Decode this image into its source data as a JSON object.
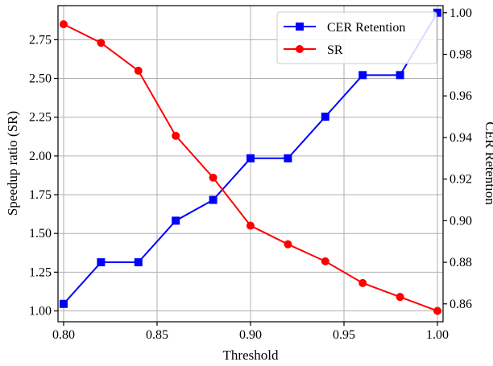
{
  "chart_data": {
    "type": "line",
    "xlabel": "Threshold",
    "ylabel_left": "Speedup ratio (SR)",
    "ylabel_right": "CER Retention",
    "xlim": [
      0.797,
      1.003
    ],
    "ylim_left": [
      0.93,
      2.97
    ],
    "ylim_right": [
      0.8514,
      1.0034
    ],
    "grid": true,
    "legend_position": "top-right",
    "x_ticks": [
      0.8,
      0.85,
      0.9,
      0.95,
      1.0
    ],
    "x_tick_labels": [
      "0.80",
      "0.85",
      "0.90",
      "0.95",
      "1.00"
    ],
    "y_left_ticks": [
      1.0,
      1.25,
      1.5,
      1.75,
      2.0,
      2.25,
      2.5,
      2.75
    ],
    "y_left_tick_labels": [
      "1.00",
      "1.25",
      "1.50",
      "1.75",
      "2.00",
      "2.25",
      "2.50",
      "2.75"
    ],
    "y_right_ticks": [
      0.86,
      0.88,
      0.9,
      0.92,
      0.94,
      0.96,
      0.98,
      1.0
    ],
    "y_right_tick_labels": [
      "0.86",
      "0.88",
      "0.90",
      "0.92",
      "0.94",
      "0.96",
      "0.98",
      "1.00"
    ],
    "x": [
      0.8,
      0.82,
      0.84,
      0.86,
      0.88,
      0.9,
      0.92,
      0.94,
      0.96,
      0.98,
      1.0
    ],
    "series": [
      {
        "name": "CER Retention",
        "axis": "right",
        "color": "#0000ff",
        "marker": "square",
        "values": [
          0.86,
          0.88,
          0.88,
          0.9,
          0.91,
          0.93,
          0.93,
          0.95,
          0.97,
          0.97,
          1.0
        ]
      },
      {
        "name": "SR",
        "axis": "left",
        "color": "#ff0000",
        "marker": "circle",
        "values": [
          2.85,
          2.73,
          2.55,
          2.13,
          1.86,
          1.55,
          1.43,
          1.32,
          1.18,
          1.09,
          1.0
        ]
      }
    ]
  }
}
